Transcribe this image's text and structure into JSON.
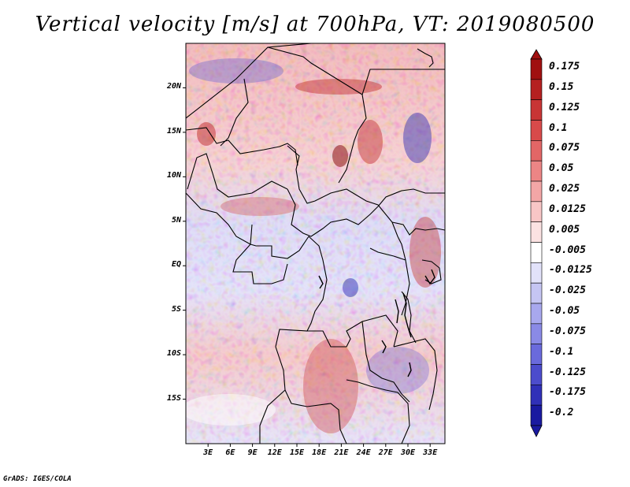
{
  "title": "Vertical velocity [m/s] at 700hPa, VT: 2019080500",
  "credit": "GrADS: IGES/COLA",
  "map": {
    "region": "Central and East Africa",
    "field": "vertical velocity",
    "units": "m/s",
    "level": "700hPa",
    "valid_time": "2019080500",
    "lon_range": [
      0,
      35
    ],
    "lat_range": [
      -20,
      25
    ]
  },
  "axes": {
    "x_ticks": [
      {
        "value": 3,
        "label": "3E"
      },
      {
        "value": 6,
        "label": "6E"
      },
      {
        "value": 9,
        "label": "9E"
      },
      {
        "value": 12,
        "label": "12E"
      },
      {
        "value": 15,
        "label": "15E"
      },
      {
        "value": 18,
        "label": "18E"
      },
      {
        "value": 21,
        "label": "21E"
      },
      {
        "value": 24,
        "label": "24E"
      },
      {
        "value": 27,
        "label": "27E"
      },
      {
        "value": 30,
        "label": "30E"
      },
      {
        "value": 33,
        "label": "33E"
      }
    ],
    "y_ticks": [
      {
        "value": 20,
        "label": "20N"
      },
      {
        "value": 15,
        "label": "15N"
      },
      {
        "value": 10,
        "label": "10N"
      },
      {
        "value": 5,
        "label": "5N"
      },
      {
        "value": 0,
        "label": "EQ"
      },
      {
        "value": -5,
        "label": "5S"
      },
      {
        "value": -10,
        "label": "10S"
      },
      {
        "value": -15,
        "label": "15S"
      }
    ]
  },
  "colorbar": {
    "levels": [
      {
        "label": "0.175",
        "color": "#a01010"
      },
      {
        "label": "0.15",
        "color": "#b52020"
      },
      {
        "label": "0.125",
        "color": "#c83535"
      },
      {
        "label": "0.1",
        "color": "#d84a4a"
      },
      {
        "label": "0.075",
        "color": "#e26666"
      },
      {
        "label": "0.05",
        "color": "#ec8585"
      },
      {
        "label": "0.025",
        "color": "#f3a6a6"
      },
      {
        "label": "0.0125",
        "color": "#f8c6c6"
      },
      {
        "label": "0.005",
        "color": "#fbe2e2"
      },
      {
        "label": "-0.005",
        "color": "#ffffff"
      },
      {
        "label": "-0.0125",
        "color": "#e2e2fa"
      },
      {
        "label": "-0.025",
        "color": "#c5c5f3"
      },
      {
        "label": "-0.05",
        "color": "#a8a8ee"
      },
      {
        "label": "-0.075",
        "color": "#8a8ae6"
      },
      {
        "label": "-0.1",
        "color": "#6a6adc"
      },
      {
        "label": "-0.125",
        "color": "#4c4ccc"
      },
      {
        "label": "-0.175",
        "color": "#3030b8"
      },
      {
        "label": "-0.2",
        "color": "#1a1aa0"
      }
    ],
    "top_extend_color": "#a01010",
    "bottom_extend_color": "#1a1aa0"
  }
}
